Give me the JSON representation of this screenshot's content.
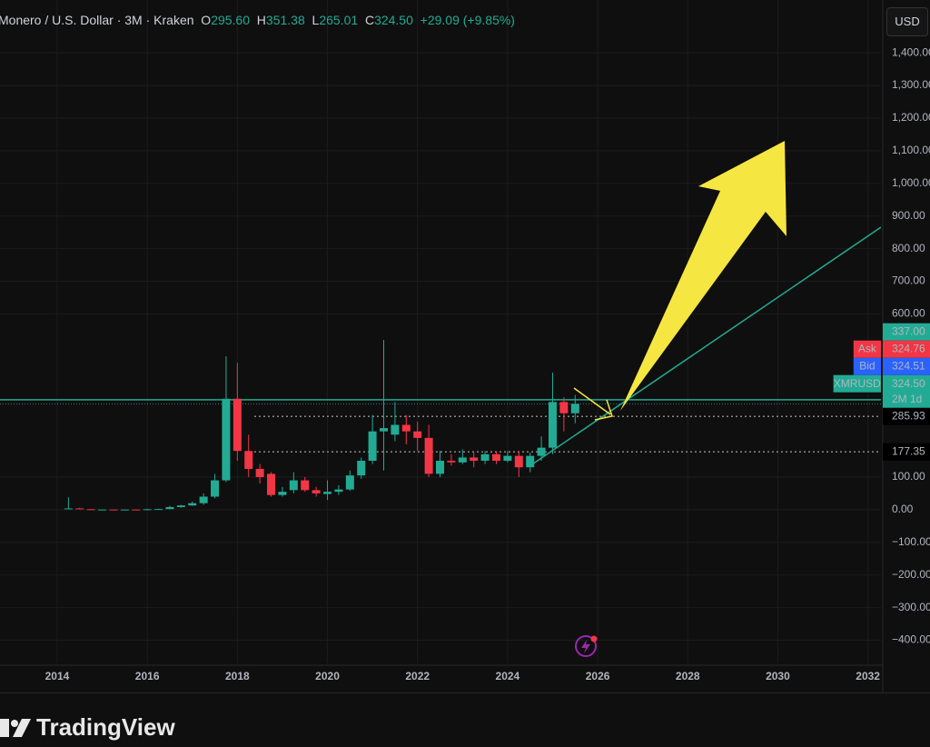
{
  "header": {
    "symbol": "Monero / U.S. Dollar · 3M · Kraken",
    "ohlc": [
      {
        "label": "O",
        "value": "295.60"
      },
      {
        "label": "H",
        "value": "351.38"
      },
      {
        "label": "L",
        "value": "265.01"
      },
      {
        "label": "C",
        "value": "324.50"
      }
    ],
    "change": "+29.09 (+9.85%)",
    "currency": "USD"
  },
  "footer": {
    "brand": "TradingView"
  },
  "chart_data": {
    "type": "candlestick",
    "x": [
      2014.25,
      2014.5,
      2014.75,
      2015,
      2015.25,
      2015.5,
      2015.75,
      2016,
      2016.25,
      2016.5,
      2016.75,
      2017,
      2017.25,
      2017.5,
      2017.75,
      2018,
      2018.25,
      2018.5,
      2018.75,
      2019,
      2019.25,
      2019.5,
      2019.75,
      2020,
      2020.25,
      2020.5,
      2020.75,
      2021,
      2021.25,
      2021.5,
      2021.75,
      2022,
      2022.25,
      2022.5,
      2022.75,
      2023,
      2023.25,
      2023.5,
      2023.75,
      2024,
      2024.25,
      2024.5,
      2024.75,
      2025,
      2025.25,
      2025.5
    ],
    "open": [
      2,
      4,
      1.5,
      0.5,
      0.6,
      0.5,
      0.6,
      0.5,
      1.5,
      2,
      8,
      13,
      20,
      40,
      90,
      340,
      180,
      125,
      110,
      45,
      60,
      90,
      60,
      48,
      55,
      62,
      105,
      150,
      240,
      230,
      260,
      240,
      220,
      110,
      150,
      145,
      160,
      150,
      170,
      150,
      165,
      130,
      165,
      190,
      330,
      295.6
    ],
    "high": [
      38,
      6,
      2,
      1,
      1,
      0.9,
      0.8,
      3,
      3,
      12,
      15,
      25,
      50,
      110,
      470,
      450,
      230,
      140,
      115,
      70,
      115,
      100,
      70,
      90,
      75,
      120,
      160,
      290,
      520,
      330,
      290,
      270,
      260,
      180,
      170,
      185,
      175,
      180,
      180,
      180,
      180,
      175,
      225,
      420,
      345,
      351.38
    ],
    "low": [
      1,
      1,
      0.4,
      0.3,
      0.4,
      0.4,
      0.4,
      0.4,
      1.2,
      1.8,
      6,
      12,
      15,
      35,
      85,
      150,
      100,
      80,
      40,
      40,
      50,
      55,
      40,
      30,
      45,
      58,
      95,
      140,
      120,
      210,
      200,
      180,
      100,
      100,
      135,
      140,
      130,
      140,
      140,
      145,
      100,
      115,
      150,
      170,
      240,
      265.01
    ],
    "close": [
      4,
      1.5,
      0.5,
      0.6,
      0.5,
      0.6,
      0.5,
      1.5,
      2,
      8,
      13,
      20,
      40,
      90,
      340,
      180,
      125,
      100,
      45,
      55,
      90,
      60,
      50,
      55,
      62,
      105,
      150,
      240,
      250,
      260,
      240,
      220,
      110,
      150,
      145,
      160,
      150,
      170,
      150,
      165,
      130,
      165,
      190,
      330,
      295.6,
      324.5
    ],
    "up_color": "#22ab94",
    "down_color": "#f23645",
    "xlim": [
      2012.73,
      2032.29
    ],
    "xticks": [
      2014,
      2016,
      2018,
      2020,
      2022,
      2024,
      2026,
      2028,
      2030,
      2032
    ],
    "ylim": [
      -471,
      1562
    ],
    "yticks": [
      {
        "value": -400,
        "label": "−400.00"
      },
      {
        "value": -300,
        "label": "−300.00"
      },
      {
        "value": -200,
        "label": "−200.00"
      },
      {
        "value": -100,
        "label": "−100.00"
      },
      {
        "value": 0,
        "label": "0.00"
      },
      {
        "value": 100,
        "label": "100.00"
      },
      {
        "value": 600,
        "label": "600.00"
      },
      {
        "value": 700,
        "label": "700.00"
      },
      {
        "value": 800,
        "label": "800.00"
      },
      {
        "value": 900,
        "label": "900.00"
      },
      {
        "value": 1000,
        "label": "1,000.00"
      },
      {
        "value": 1100,
        "label": "1,100.00"
      },
      {
        "value": 1200,
        "label": "1,200.00"
      },
      {
        "value": 1300,
        "label": "1,300.00"
      },
      {
        "value": 1400,
        "label": "1,400.00"
      }
    ],
    "grid": true,
    "price_labels": [
      {
        "value": 337,
        "value_label": "337.00",
        "color": "#22ab94"
      },
      {
        "label": "Ask",
        "value": 324.76,
        "value_label": "324.76",
        "color": "#f23645"
      },
      {
        "label": "Bid",
        "value": 324.51,
        "value_label": "324.51",
        "color": "#2962ff"
      },
      {
        "label": "XMRUSD",
        "value": 324.5,
        "value_label": "324.50",
        "sublabel": "2M 1d",
        "color": "#22ab94"
      },
      {
        "value": 285.93,
        "value_label": "285.93",
        "color": "#000000"
      },
      {
        "value": 177.35,
        "value_label": "177.35",
        "color": "#000000"
      }
    ]
  }
}
